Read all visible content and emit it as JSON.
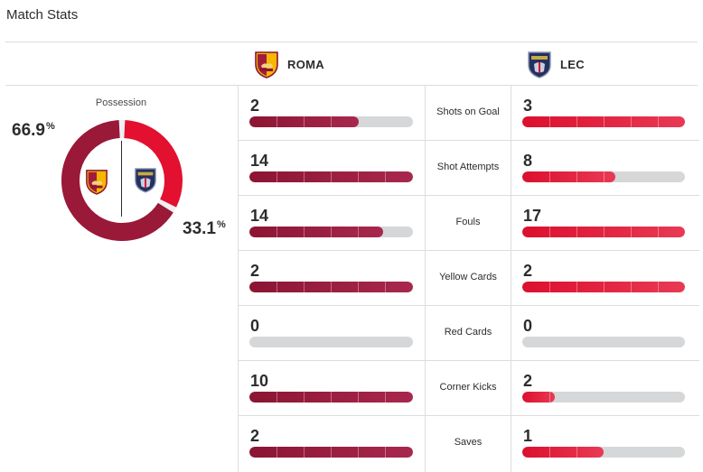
{
  "header": {
    "title": "Match Stats"
  },
  "teams": {
    "home": {
      "abbr": "ROMA",
      "crest_icon": "as-roma-crest-icon",
      "color": "#8c1533"
    },
    "away": {
      "abbr": "LEC",
      "crest_icon": "us-lecce-crest-icon",
      "color": "#dc0f2e"
    }
  },
  "possession": {
    "label": "Possession",
    "home_value": "66.9",
    "away_value": "33.1",
    "unit": "%",
    "home_fraction": 0.669,
    "away_fraction": 0.331
  },
  "stats": [
    {
      "label": "Shots on Goal",
      "home": "2",
      "away": "3",
      "home_fill": 0.67,
      "away_fill": 1.0
    },
    {
      "label": "Shot Attempts",
      "home": "14",
      "away": "8",
      "home_fill": 1.0,
      "away_fill": 0.57
    },
    {
      "label": "Fouls",
      "home": "14",
      "away": "17",
      "home_fill": 0.82,
      "away_fill": 1.0
    },
    {
      "label": "Yellow Cards",
      "home": "2",
      "away": "2",
      "home_fill": 1.0,
      "away_fill": 1.0
    },
    {
      "label": "Red Cards",
      "home": "0",
      "away": "0",
      "home_fill": 0,
      "away_fill": 0
    },
    {
      "label": "Corner Kicks",
      "home": "10",
      "away": "2",
      "home_fill": 1.0,
      "away_fill": 0.2
    },
    {
      "label": "Saves",
      "home": "2",
      "away": "1",
      "home_fill": 1.0,
      "away_fill": 0.5
    }
  ]
}
